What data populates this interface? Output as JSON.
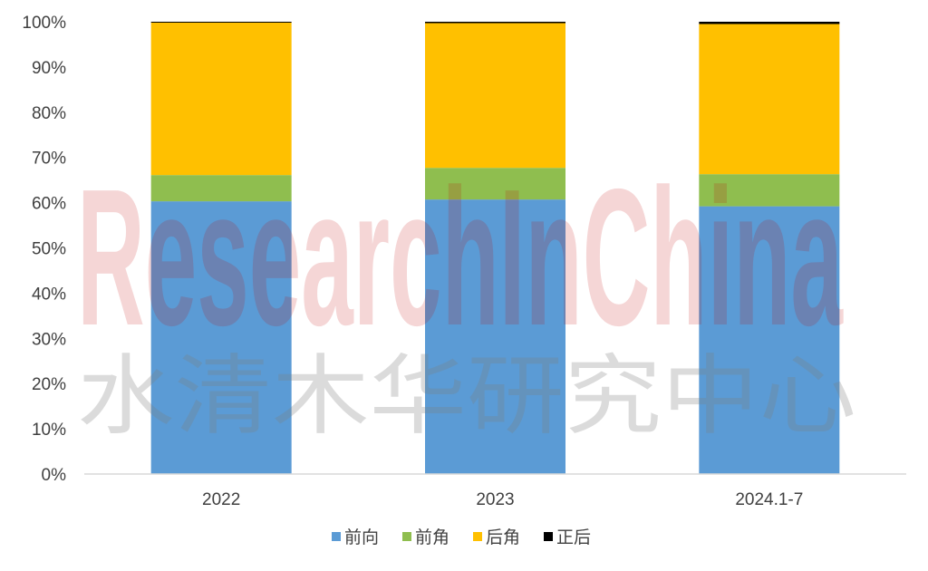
{
  "chart_data": {
    "type": "bar",
    "stacked": true,
    "categories": [
      "2022",
      "2023",
      "2024.1-7"
    ],
    "series": [
      {
        "name": "前向",
        "color": "#5B9BD5",
        "values": [
          60.3,
          60.7,
          59.2
        ]
      },
      {
        "name": "前角",
        "color": "#8FBE4F",
        "values": [
          5.8,
          7.0,
          7.1
        ]
      },
      {
        "name": "后角",
        "color": "#FFC000",
        "values": [
          33.7,
          32.0,
          33.2
        ]
      },
      {
        "name": "正后",
        "color": "#000000",
        "values": [
          0.2,
          0.3,
          0.5
        ]
      }
    ],
    "y_ticks": [
      "0%",
      "10%",
      "20%",
      "30%",
      "40%",
      "50%",
      "60%",
      "70%",
      "80%",
      "90%",
      "100%"
    ],
    "ylim": [
      0,
      100
    ],
    "y_unit": "%",
    "grid": false,
    "legend_position": "bottom"
  },
  "watermark": {
    "latin": "ResearchInChina",
    "cjk": "水清木华研究中心"
  }
}
